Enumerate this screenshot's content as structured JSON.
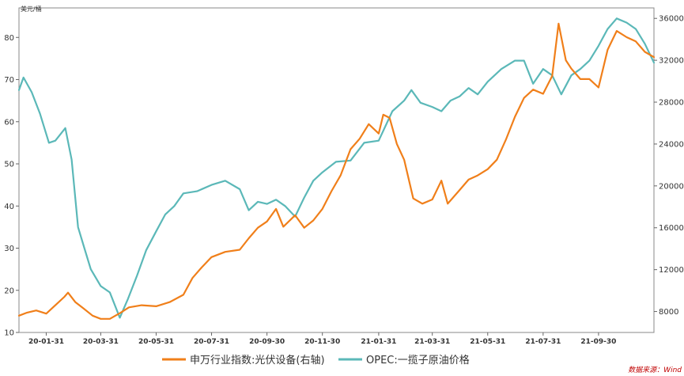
{
  "chart_data": {
    "type": "line",
    "unit_left": "美元/桶",
    "source": "数据来源：Wind",
    "colors": {
      "solar": "#f07f1a",
      "oil": "#5bb8b8"
    },
    "left_axis": {
      "min": 10,
      "max": 87,
      "ticks": [
        "10",
        "20",
        "30",
        "40",
        "50",
        "60",
        "70",
        "80"
      ]
    },
    "right_axis": {
      "min": 6000,
      "max": 37000,
      "ticks": [
        "8000",
        "12000",
        "16000",
        "20000",
        "24000",
        "28000",
        "32000",
        "36000"
      ]
    },
    "x_range": [
      "2020-01-01",
      "2021-11-30"
    ],
    "x_ticks": [
      {
        "date": "2020-01-31",
        "label": "20-01-31"
      },
      {
        "date": "2020-03-31",
        "label": "20-03-31"
      },
      {
        "date": "2020-05-31",
        "label": "20-05-31"
      },
      {
        "date": "2020-07-31",
        "label": "20-07-31"
      },
      {
        "date": "2020-09-30",
        "label": "20-09-30"
      },
      {
        "date": "2020-11-30",
        "label": "20-11-30"
      },
      {
        "date": "2021-01-31",
        "label": "21-01-31"
      },
      {
        "date": "2021-03-31",
        "label": "21-03-31"
      },
      {
        "date": "2021-05-31",
        "label": "21-05-31"
      },
      {
        "date": "2021-07-31",
        "label": "21-07-31"
      },
      {
        "date": "2021-09-30",
        "label": "21-09-30"
      }
    ],
    "series": [
      {
        "name": "申万行业指数:光伏设备(右轴)",
        "axis": "right",
        "points": [
          [
            "2020-01-01",
            7600
          ],
          [
            "2020-01-10",
            7900
          ],
          [
            "2020-01-20",
            8100
          ],
          [
            "2020-01-31",
            7800
          ],
          [
            "2020-02-10",
            8600
          ],
          [
            "2020-02-20",
            9400
          ],
          [
            "2020-02-24",
            9800
          ],
          [
            "2020-03-03",
            8900
          ],
          [
            "2020-03-12",
            8300
          ],
          [
            "2020-03-22",
            7600
          ],
          [
            "2020-03-31",
            7300
          ],
          [
            "2020-04-10",
            7300
          ],
          [
            "2020-04-22",
            7900
          ],
          [
            "2020-05-01",
            8400
          ],
          [
            "2020-05-15",
            8600
          ],
          [
            "2020-05-31",
            8500
          ],
          [
            "2020-06-15",
            8900
          ],
          [
            "2020-06-30",
            9600
          ],
          [
            "2020-07-10",
            11200
          ],
          [
            "2020-07-20",
            12200
          ],
          [
            "2020-07-31",
            13200
          ],
          [
            "2020-08-15",
            13700
          ],
          [
            "2020-08-31",
            13900
          ],
          [
            "2020-09-10",
            15000
          ],
          [
            "2020-09-20",
            16000
          ],
          [
            "2020-09-30",
            16600
          ],
          [
            "2020-10-10",
            17800
          ],
          [
            "2020-10-18",
            16100
          ],
          [
            "2020-10-31",
            17200
          ],
          [
            "2020-11-10",
            16000
          ],
          [
            "2020-11-20",
            16700
          ],
          [
            "2020-11-30",
            17800
          ],
          [
            "2020-12-10",
            19500
          ],
          [
            "2020-12-20",
            21000
          ],
          [
            "2020-12-31",
            23500
          ],
          [
            "2021-01-10",
            24500
          ],
          [
            "2021-01-20",
            25900
          ],
          [
            "2021-01-31",
            25000
          ],
          [
            "2021-02-05",
            26800
          ],
          [
            "2021-02-12",
            26500
          ],
          [
            "2021-02-20",
            24000
          ],
          [
            "2021-02-28",
            22500
          ],
          [
            "2021-03-10",
            18800
          ],
          [
            "2021-03-20",
            18300
          ],
          [
            "2021-03-31",
            18700
          ],
          [
            "2021-04-10",
            20500
          ],
          [
            "2021-04-17",
            18300
          ],
          [
            "2021-04-30",
            19600
          ],
          [
            "2021-05-10",
            20600
          ],
          [
            "2021-05-20",
            21000
          ],
          [
            "2021-05-31",
            21600
          ],
          [
            "2021-06-10",
            22500
          ],
          [
            "2021-06-20",
            24400
          ],
          [
            "2021-06-30",
            26600
          ],
          [
            "2021-07-10",
            28400
          ],
          [
            "2021-07-20",
            29200
          ],
          [
            "2021-07-31",
            28800
          ],
          [
            "2021-08-10",
            30500
          ],
          [
            "2021-08-17",
            35500
          ],
          [
            "2021-08-25",
            32000
          ],
          [
            "2021-08-31",
            31200
          ],
          [
            "2021-09-10",
            30200
          ],
          [
            "2021-09-20",
            30200
          ],
          [
            "2021-09-30",
            29400
          ],
          [
            "2021-10-10",
            33000
          ],
          [
            "2021-10-20",
            34800
          ],
          [
            "2021-10-31",
            34200
          ],
          [
            "2021-11-10",
            33800
          ],
          [
            "2021-11-20",
            32800
          ],
          [
            "2021-11-30",
            32300
          ]
        ]
      },
      {
        "name": "OPEC:一揽子原油价格",
        "axis": "left",
        "points": [
          [
            "2020-01-01",
            67.5
          ],
          [
            "2020-01-06",
            70.5
          ],
          [
            "2020-01-15",
            67.0
          ],
          [
            "2020-01-24",
            62.0
          ],
          [
            "2020-02-03",
            55.0
          ],
          [
            "2020-02-10",
            55.5
          ],
          [
            "2020-02-21",
            58.5
          ],
          [
            "2020-02-28",
            51.0
          ],
          [
            "2020-03-06",
            35.0
          ],
          [
            "2020-03-13",
            30.0
          ],
          [
            "2020-03-20",
            25.0
          ],
          [
            "2020-03-31",
            21.0
          ],
          [
            "2020-04-10",
            19.5
          ],
          [
            "2020-04-21",
            13.5
          ],
          [
            "2020-04-30",
            18.0
          ],
          [
            "2020-05-10",
            23.5
          ],
          [
            "2020-05-20",
            29.5
          ],
          [
            "2020-05-31",
            34.0
          ],
          [
            "2020-06-10",
            38.0
          ],
          [
            "2020-06-20",
            40.0
          ],
          [
            "2020-06-30",
            43.0
          ],
          [
            "2020-07-15",
            43.5
          ],
          [
            "2020-07-31",
            45.0
          ],
          [
            "2020-08-15",
            46.0
          ],
          [
            "2020-08-31",
            44.0
          ],
          [
            "2020-09-10",
            39.0
          ],
          [
            "2020-09-20",
            41.0
          ],
          [
            "2020-09-30",
            40.5
          ],
          [
            "2020-10-10",
            41.5
          ],
          [
            "2020-10-20",
            40.0
          ],
          [
            "2020-10-31",
            37.5
          ],
          [
            "2020-11-10",
            42.0
          ],
          [
            "2020-11-20",
            46.0
          ],
          [
            "2020-11-30",
            48.0
          ],
          [
            "2020-12-15",
            50.5
          ],
          [
            "2020-12-31",
            50.8
          ],
          [
            "2021-01-15",
            55.0
          ],
          [
            "2021-01-31",
            55.5
          ],
          [
            "2021-02-15",
            62.5
          ],
          [
            "2021-02-28",
            65.0
          ],
          [
            "2021-03-08",
            67.5
          ],
          [
            "2021-03-18",
            64.5
          ],
          [
            "2021-03-31",
            63.5
          ],
          [
            "2021-04-10",
            62.5
          ],
          [
            "2021-04-20",
            65.0
          ],
          [
            "2021-04-30",
            66.0
          ],
          [
            "2021-05-10",
            68.0
          ],
          [
            "2021-05-20",
            66.5
          ],
          [
            "2021-05-31",
            69.5
          ],
          [
            "2021-06-15",
            72.5
          ],
          [
            "2021-06-30",
            74.5
          ],
          [
            "2021-07-10",
            74.5
          ],
          [
            "2021-07-20",
            69.0
          ],
          [
            "2021-07-31",
            72.5
          ],
          [
            "2021-08-10",
            71.0
          ],
          [
            "2021-08-20",
            66.5
          ],
          [
            "2021-08-31",
            71.0
          ],
          [
            "2021-09-10",
            72.5
          ],
          [
            "2021-09-20",
            74.5
          ],
          [
            "2021-09-30",
            78.0
          ],
          [
            "2021-10-10",
            82.0
          ],
          [
            "2021-10-20",
            84.5
          ],
          [
            "2021-10-31",
            83.5
          ],
          [
            "2021-11-10",
            82.0
          ],
          [
            "2021-11-20",
            78.5
          ],
          [
            "2021-11-30",
            74.0
          ]
        ]
      }
    ]
  }
}
